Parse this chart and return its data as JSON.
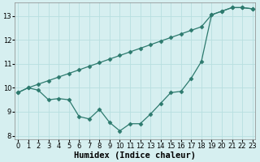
{
  "line1_x": [
    0,
    1,
    2,
    3,
    4,
    5,
    6,
    7,
    8,
    9,
    10,
    11,
    12,
    13,
    14,
    15,
    16,
    17,
    18,
    19,
    20,
    21,
    22,
    23
  ],
  "line1_y": [
    9.8,
    10.0,
    10.15,
    10.3,
    10.45,
    10.6,
    10.75,
    10.9,
    11.05,
    11.2,
    11.35,
    11.5,
    11.65,
    11.8,
    11.95,
    12.1,
    12.25,
    12.4,
    12.55,
    13.05,
    13.2,
    13.35,
    13.35,
    13.3
  ],
  "line2_x": [
    0,
    1,
    2,
    3,
    4,
    5,
    6,
    7,
    8,
    9,
    10,
    11,
    12,
    13,
    14,
    15,
    16,
    17,
    18,
    19,
    20,
    21,
    22,
    23
  ],
  "line2_y": [
    9.8,
    10.0,
    9.9,
    9.5,
    9.55,
    9.5,
    8.8,
    8.7,
    9.1,
    8.55,
    8.2,
    8.5,
    8.5,
    8.9,
    9.35,
    9.8,
    9.85,
    10.4,
    11.1,
    13.05,
    13.2,
    13.35,
    13.35,
    13.3
  ],
  "line_color": "#2d7a6e",
  "marker": "D",
  "marker_size": 2.5,
  "bg_color": "#d6eff0",
  "grid_color": "#b8dfe0",
  "xlim": [
    -0.3,
    23.3
  ],
  "ylim": [
    7.85,
    13.55
  ],
  "xlabel": "Humidex (Indice chaleur)",
  "xticks": [
    0,
    1,
    2,
    3,
    4,
    5,
    6,
    7,
    8,
    9,
    10,
    11,
    12,
    13,
    14,
    15,
    16,
    17,
    18,
    19,
    20,
    21,
    22,
    23
  ],
  "yticks": [
    8,
    9,
    10,
    11,
    12,
    13
  ],
  "tick_fontsize": 6.0,
  "xlabel_fontsize": 7.5,
  "linewidth": 0.9
}
